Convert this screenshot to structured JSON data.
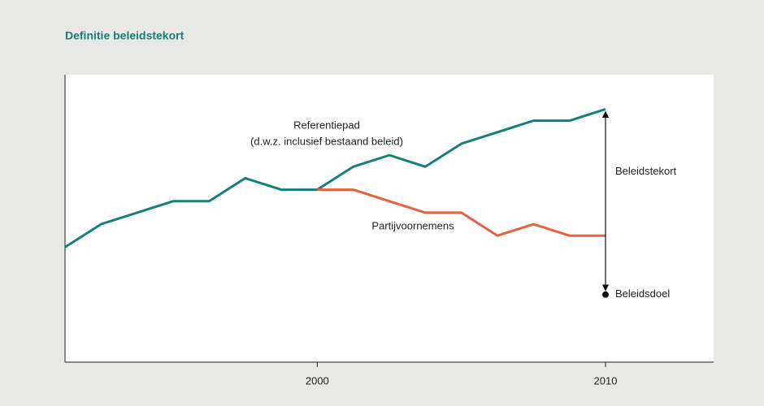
{
  "chart_data": {
    "type": "line",
    "title": "Definitie beleidstekort",
    "x": [
      1991.25,
      1992.5,
      1993.75,
      1995,
      1996.25,
      1997.5,
      1998.75,
      2000,
      2001.25,
      2002.5,
      2003.75,
      2005,
      2006.25,
      2007.5,
      2008.75,
      2010
    ],
    "series": [
      {
        "name": "Referentiepad",
        "color": "#13807f",
        "values": [
          40,
          48,
          52,
          56,
          56,
          64,
          60,
          60,
          68,
          72,
          68,
          76,
          80,
          84,
          84,
          88
        ]
      },
      {
        "name": "Partijvoornemens",
        "color": "#e8603c",
        "values": [
          null,
          null,
          null,
          null,
          null,
          null,
          null,
          60,
          60,
          56,
          52,
          52,
          44,
          48,
          44,
          44
        ]
      }
    ],
    "series_notes": [
      "(d.w.z. inclusief bestaand beleid)"
    ],
    "gap_label": "Beleidstekort",
    "goal": {
      "name": "Beleidsdoel",
      "x": 2010,
      "value": 23.5
    },
    "xlim": [
      1991.25,
      2013.75
    ],
    "xticks": [
      2000,
      2010
    ],
    "ylim": [
      0,
      100
    ]
  }
}
